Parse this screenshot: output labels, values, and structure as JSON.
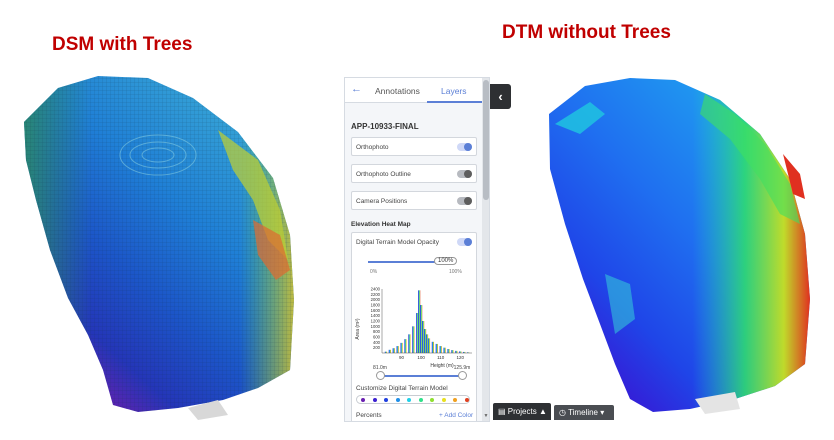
{
  "titles": {
    "dsm": "DSM with Trees",
    "dtm": "DTM without Trees"
  },
  "panel": {
    "tabs": [
      {
        "label": "Annotations"
      },
      {
        "label": "Layers"
      }
    ],
    "active_tab": "Layers",
    "project_name": "APP-10933-FINAL",
    "layers": [
      {
        "label": "Orthophoto",
        "enabled": true
      },
      {
        "label": "Orthophoto Outline",
        "enabled": false
      },
      {
        "label": "Camera Positions",
        "enabled": false
      }
    ],
    "heat_map": {
      "section_title": "Elevation Heat Map",
      "model_label": "Digital Terrain Model Opacity",
      "model_enabled": true,
      "opacity_value": "100%",
      "opacity_min": "0%",
      "opacity_max": "100%",
      "range_min": "81.0m",
      "range_max": "125.9m",
      "customize_label": "Customize Digital Terrain Model",
      "percents_label": "Percents",
      "add_color_label": "+ Add Color",
      "color_stops": [
        "#6a1fb1",
        "#3b1fd0",
        "#1f3fe0",
        "#1f8fe8",
        "#1fd0e8",
        "#2fe08a",
        "#8fe030",
        "#e8e020",
        "#f0a020",
        "#e04020"
      ]
    }
  },
  "histogram": {
    "y_ticks": [
      "2400",
      "2200",
      "2000",
      "1800",
      "1600",
      "1400",
      "1200",
      "1000",
      "800",
      "600",
      "400",
      "200"
    ],
    "x_ticks": [
      "90",
      "100",
      "110",
      "120"
    ],
    "ylabel": "Area (m²)",
    "xlabel": "Height (m)"
  },
  "chart_data": {
    "type": "bar",
    "xlabel": "Height (m)",
    "ylabel": "Area (m²)",
    "xlim": [
      80,
      126
    ],
    "ylim": [
      0,
      2400
    ],
    "x": [
      82,
      84,
      86,
      88,
      90,
      92,
      94,
      96,
      98,
      99,
      100,
      101,
      102,
      103,
      104,
      106,
      108,
      110,
      112,
      114,
      116,
      118,
      120,
      122,
      124
    ],
    "values": [
      50,
      120,
      180,
      260,
      380,
      520,
      700,
      1000,
      1500,
      2350,
      1800,
      1200,
      900,
      700,
      550,
      420,
      340,
      260,
      200,
      150,
      110,
      80,
      60,
      40,
      25
    ]
  },
  "bottom_bar": {
    "projects_label": "Projects",
    "timeline_label": "Timeline"
  }
}
